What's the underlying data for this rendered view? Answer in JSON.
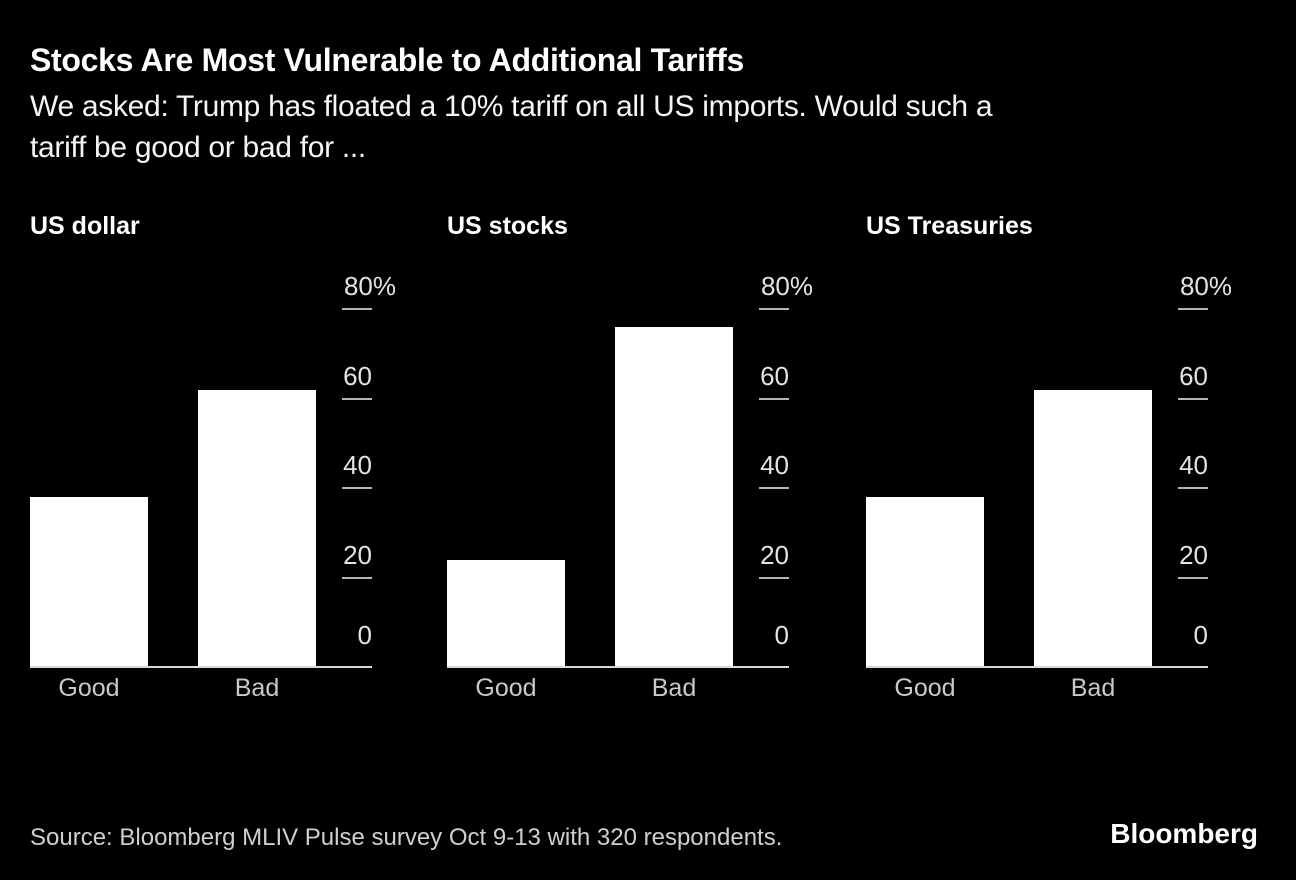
{
  "header": {
    "title": "Stocks Are Most Vulnerable to Additional Tariffs",
    "subtitle_line1": "We asked: Trump has floated a 10% tariff on all US imports. Would such a",
    "subtitle_line2": "tariff be good or bad for ..."
  },
  "chart_data": [
    {
      "type": "bar",
      "title": "US dollar",
      "categories": [
        "Good",
        "Bad"
      ],
      "values": [
        38,
        62
      ],
      "unit": "%",
      "ylim": [
        0,
        80
      ],
      "yticks": [
        {
          "value": 80,
          "label": "80%"
        },
        {
          "value": 60,
          "label": "60"
        },
        {
          "value": 40,
          "label": "40"
        },
        {
          "value": 20,
          "label": "20"
        },
        {
          "value": 0,
          "label": "0"
        }
      ],
      "legend": "none",
      "grid": "off",
      "axis_side": "right"
    },
    {
      "type": "bar",
      "title": "US stocks",
      "categories": [
        "Good",
        "Bad"
      ],
      "values": [
        24,
        76
      ],
      "unit": "%",
      "ylim": [
        0,
        80
      ],
      "yticks": [
        {
          "value": 80,
          "label": "80%"
        },
        {
          "value": 60,
          "label": "60"
        },
        {
          "value": 40,
          "label": "40"
        },
        {
          "value": 20,
          "label": "20"
        },
        {
          "value": 0,
          "label": "0"
        }
      ],
      "legend": "none",
      "grid": "off",
      "axis_side": "right"
    },
    {
      "type": "bar",
      "title": "US Treasuries",
      "categories": [
        "Good",
        "Bad"
      ],
      "values": [
        38,
        62
      ],
      "unit": "%",
      "ylim": [
        0,
        80
      ],
      "yticks": [
        {
          "value": 80,
          "label": "80%"
        },
        {
          "value": 60,
          "label": "60"
        },
        {
          "value": 40,
          "label": "40"
        },
        {
          "value": 20,
          "label": "20"
        },
        {
          "value": 0,
          "label": "0"
        }
      ],
      "legend": "none",
      "grid": "off",
      "axis_side": "right"
    }
  ],
  "footer": {
    "source": "Source: Bloomberg MLIV Pulse survey Oct 9-13 with 320 respondents.",
    "logo": "Bloomberg"
  },
  "colors": {
    "background": "#000000",
    "bar": "#ffffff",
    "title_text": "#ffffff",
    "tick_label": "#e3e3e3",
    "category_label": "#c9c9c9",
    "tick_line": "#b5b5b5",
    "axis_line": "#d9d9d9"
  }
}
